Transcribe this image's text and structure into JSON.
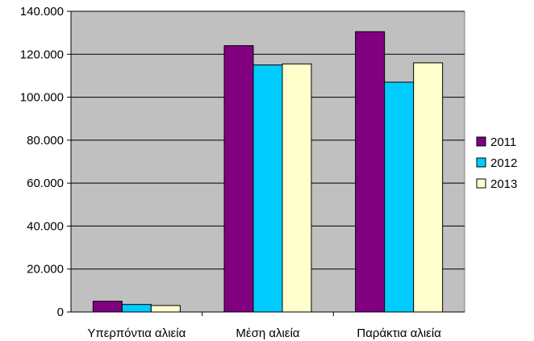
{
  "chart_data": {
    "type": "bar",
    "categories": [
      "Υπερπόντια αλιεία",
      "Μέση αλιεία",
      "Παράκτια αλιεία"
    ],
    "series": [
      {
        "name": "2011",
        "color": "#800080",
        "values": [
          5000,
          124000,
          130500
        ]
      },
      {
        "name": "2012",
        "color": "#00ccff",
        "values": [
          3500,
          115000,
          107000
        ]
      },
      {
        "name": "2013",
        "color": "#ffffcc",
        "values": [
          3000,
          115500,
          116000
        ]
      }
    ],
    "y_ticks": [
      "0",
      "20.000",
      "40.000",
      "60.000",
      "80.000",
      "100.000",
      "120.000",
      "140.000"
    ],
    "ylim": [
      0,
      140000
    ],
    "title": "",
    "xlabel": "",
    "ylabel": "",
    "grid": true,
    "plot_background": "#c0c0c0",
    "legend_position": "right"
  }
}
